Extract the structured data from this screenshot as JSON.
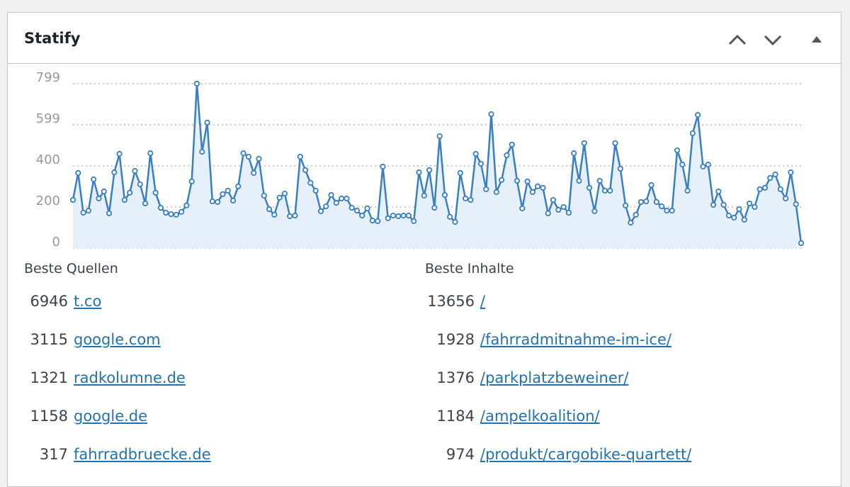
{
  "header": {
    "title": "Statify"
  },
  "chart_data": {
    "type": "area",
    "color": "#3a7fc1",
    "fill": "#e6f0fa",
    "grid": true,
    "ylim": [
      0,
      799
    ],
    "yticks": [
      0,
      200,
      400,
      599,
      799
    ],
    "values": [
      234,
      365,
      172,
      182,
      334,
      241,
      275,
      169,
      368,
      458,
      234,
      269,
      375,
      310,
      217,
      461,
      269,
      196,
      172,
      165,
      162,
      176,
      207,
      324,
      799,
      468,
      610,
      227,
      224,
      262,
      279,
      231,
      300,
      461,
      444,
      365,
      434,
      255,
      189,
      162,
      245,
      265,
      155,
      158,
      444,
      379,
      317,
      279,
      179,
      203,
      258,
      220,
      241,
      241,
      196,
      182,
      158,
      193,
      134,
      131,
      396,
      145,
      158,
      155,
      158,
      158,
      131,
      368,
      255,
      379,
      196,
      544,
      258,
      152,
      127,
      365,
      241,
      234,
      458,
      410,
      286,
      651,
      272,
      331,
      451,
      503,
      327,
      193,
      324,
      272,
      300,
      293,
      169,
      234,
      186,
      200,
      172,
      461,
      327,
      510,
      293,
      179,
      327,
      279,
      279,
      510,
      386,
      207,
      124,
      162,
      224,
      227,
      306,
      224,
      203,
      182,
      182,
      475,
      406,
      279,
      558,
      647,
      396,
      406,
      210,
      275,
      210,
      158,
      148,
      189,
      138,
      217,
      200,
      286,
      293,
      341,
      358,
      286,
      241,
      368,
      213,
      24
    ]
  },
  "sources": {
    "title": "Beste Quellen",
    "rows": [
      {
        "count": 6946,
        "label": "t.co"
      },
      {
        "count": 3115,
        "label": "google.com"
      },
      {
        "count": 1321,
        "label": "radkolumne.de"
      },
      {
        "count": 1158,
        "label": "google.de"
      },
      {
        "count": 317,
        "label": "fahrradbruecke.de"
      }
    ]
  },
  "contents": {
    "title": "Beste Inhalte",
    "rows": [
      {
        "count": 13656,
        "label": "/"
      },
      {
        "count": 1928,
        "label": "/fahrradmitnahme-im-ice/"
      },
      {
        "count": 1376,
        "label": "/parkplatzbeweiner/"
      },
      {
        "count": 1184,
        "label": "/ampelkoalition/"
      },
      {
        "count": 974,
        "label": "/produkt/cargobike-quartett/"
      }
    ]
  }
}
